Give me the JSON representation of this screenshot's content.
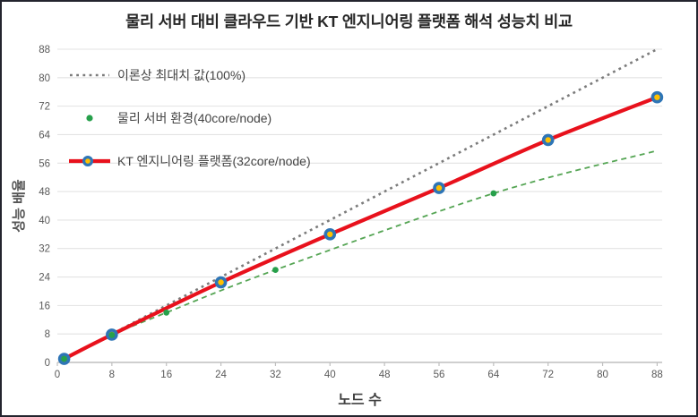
{
  "title": "물리 서버 대비 클라우드 기반 KT 엔지니어링 플랫폼 해석 성능치 비교",
  "axes": {
    "x": {
      "label": "노드 수",
      "ticks": [
        0,
        8,
        16,
        24,
        32,
        40,
        48,
        56,
        64,
        72,
        80,
        88
      ]
    },
    "y": {
      "label": "성능 배율",
      "ticks": [
        0,
        8,
        16,
        24,
        32,
        40,
        48,
        56,
        64,
        72,
        80,
        88
      ]
    }
  },
  "legend": [
    {
      "label": "이론상 최대치 값(100%)",
      "sample": "dotted-line"
    },
    {
      "label": "물리 서버 환경(40core/node)",
      "sample": "dot"
    },
    {
      "label": "KT 엔지니어링 플랫폼(32core/node)",
      "sample": "line-with-marker"
    }
  ],
  "colors": {
    "theory": "#7b7b7b",
    "physical": "#27a04b",
    "physical_trend": "#55a554",
    "kt": "#e8111c",
    "marker_ring": "#2e75b6",
    "marker_center": "#ffc000",
    "grid": "#e3e3e3",
    "axis": "#bfbfbf",
    "tick_text": "#595959",
    "frame_border": "#23242e"
  },
  "chart_data": {
    "type": "line",
    "title": "물리 서버 대비 클라우드 기반 KT 엔지니어링 플랫폼 해석 성능치 비교",
    "xlabel": "노드 수",
    "ylabel": "성능 배율",
    "xlim": [
      0,
      88.8
    ],
    "ylim": [
      0,
      88
    ],
    "x_ticks": [
      0,
      8,
      16,
      24,
      32,
      40,
      48,
      56,
      64,
      72,
      80,
      88
    ],
    "y_ticks": [
      0,
      8,
      16,
      24,
      32,
      40,
      48,
      56,
      64,
      72,
      80,
      88
    ],
    "grid": "horizontal-only",
    "legend_position": "inside-top-left",
    "series": [
      {
        "name": "이론상 최대치 값(100%)",
        "style": "dotted-line",
        "color": "#7b7b7b",
        "points": [
          [
            1,
            1
          ],
          [
            88,
            88
          ]
        ]
      },
      {
        "name": "물리 서버 환경(40core/node)",
        "style": "scatter-dots-with-dashed-trendline",
        "color": "#27a04b",
        "points": [
          [
            1,
            1
          ],
          [
            8,
            7.7
          ],
          [
            16,
            14
          ],
          [
            32,
            26
          ],
          [
            64,
            47.5
          ]
        ],
        "trendline_points": [
          [
            1,
            1
          ],
          [
            8,
            7.7
          ],
          [
            16,
            14
          ],
          [
            32,
            26
          ],
          [
            64,
            47.5
          ],
          [
            88,
            59.5
          ]
        ]
      },
      {
        "name": "KT 엔지니어링 플랫폼(32core/node)",
        "style": "thick-line-with-ring-markers",
        "color": "#e8111c",
        "marker_ring": "#2e75b6",
        "marker_center": "#ffc000",
        "points": [
          [
            1,
            1
          ],
          [
            8,
            7.8
          ],
          [
            24,
            22.5
          ],
          [
            40,
            36
          ],
          [
            56,
            49
          ],
          [
            72,
            62.5
          ],
          [
            88,
            74.5
          ]
        ]
      }
    ]
  }
}
